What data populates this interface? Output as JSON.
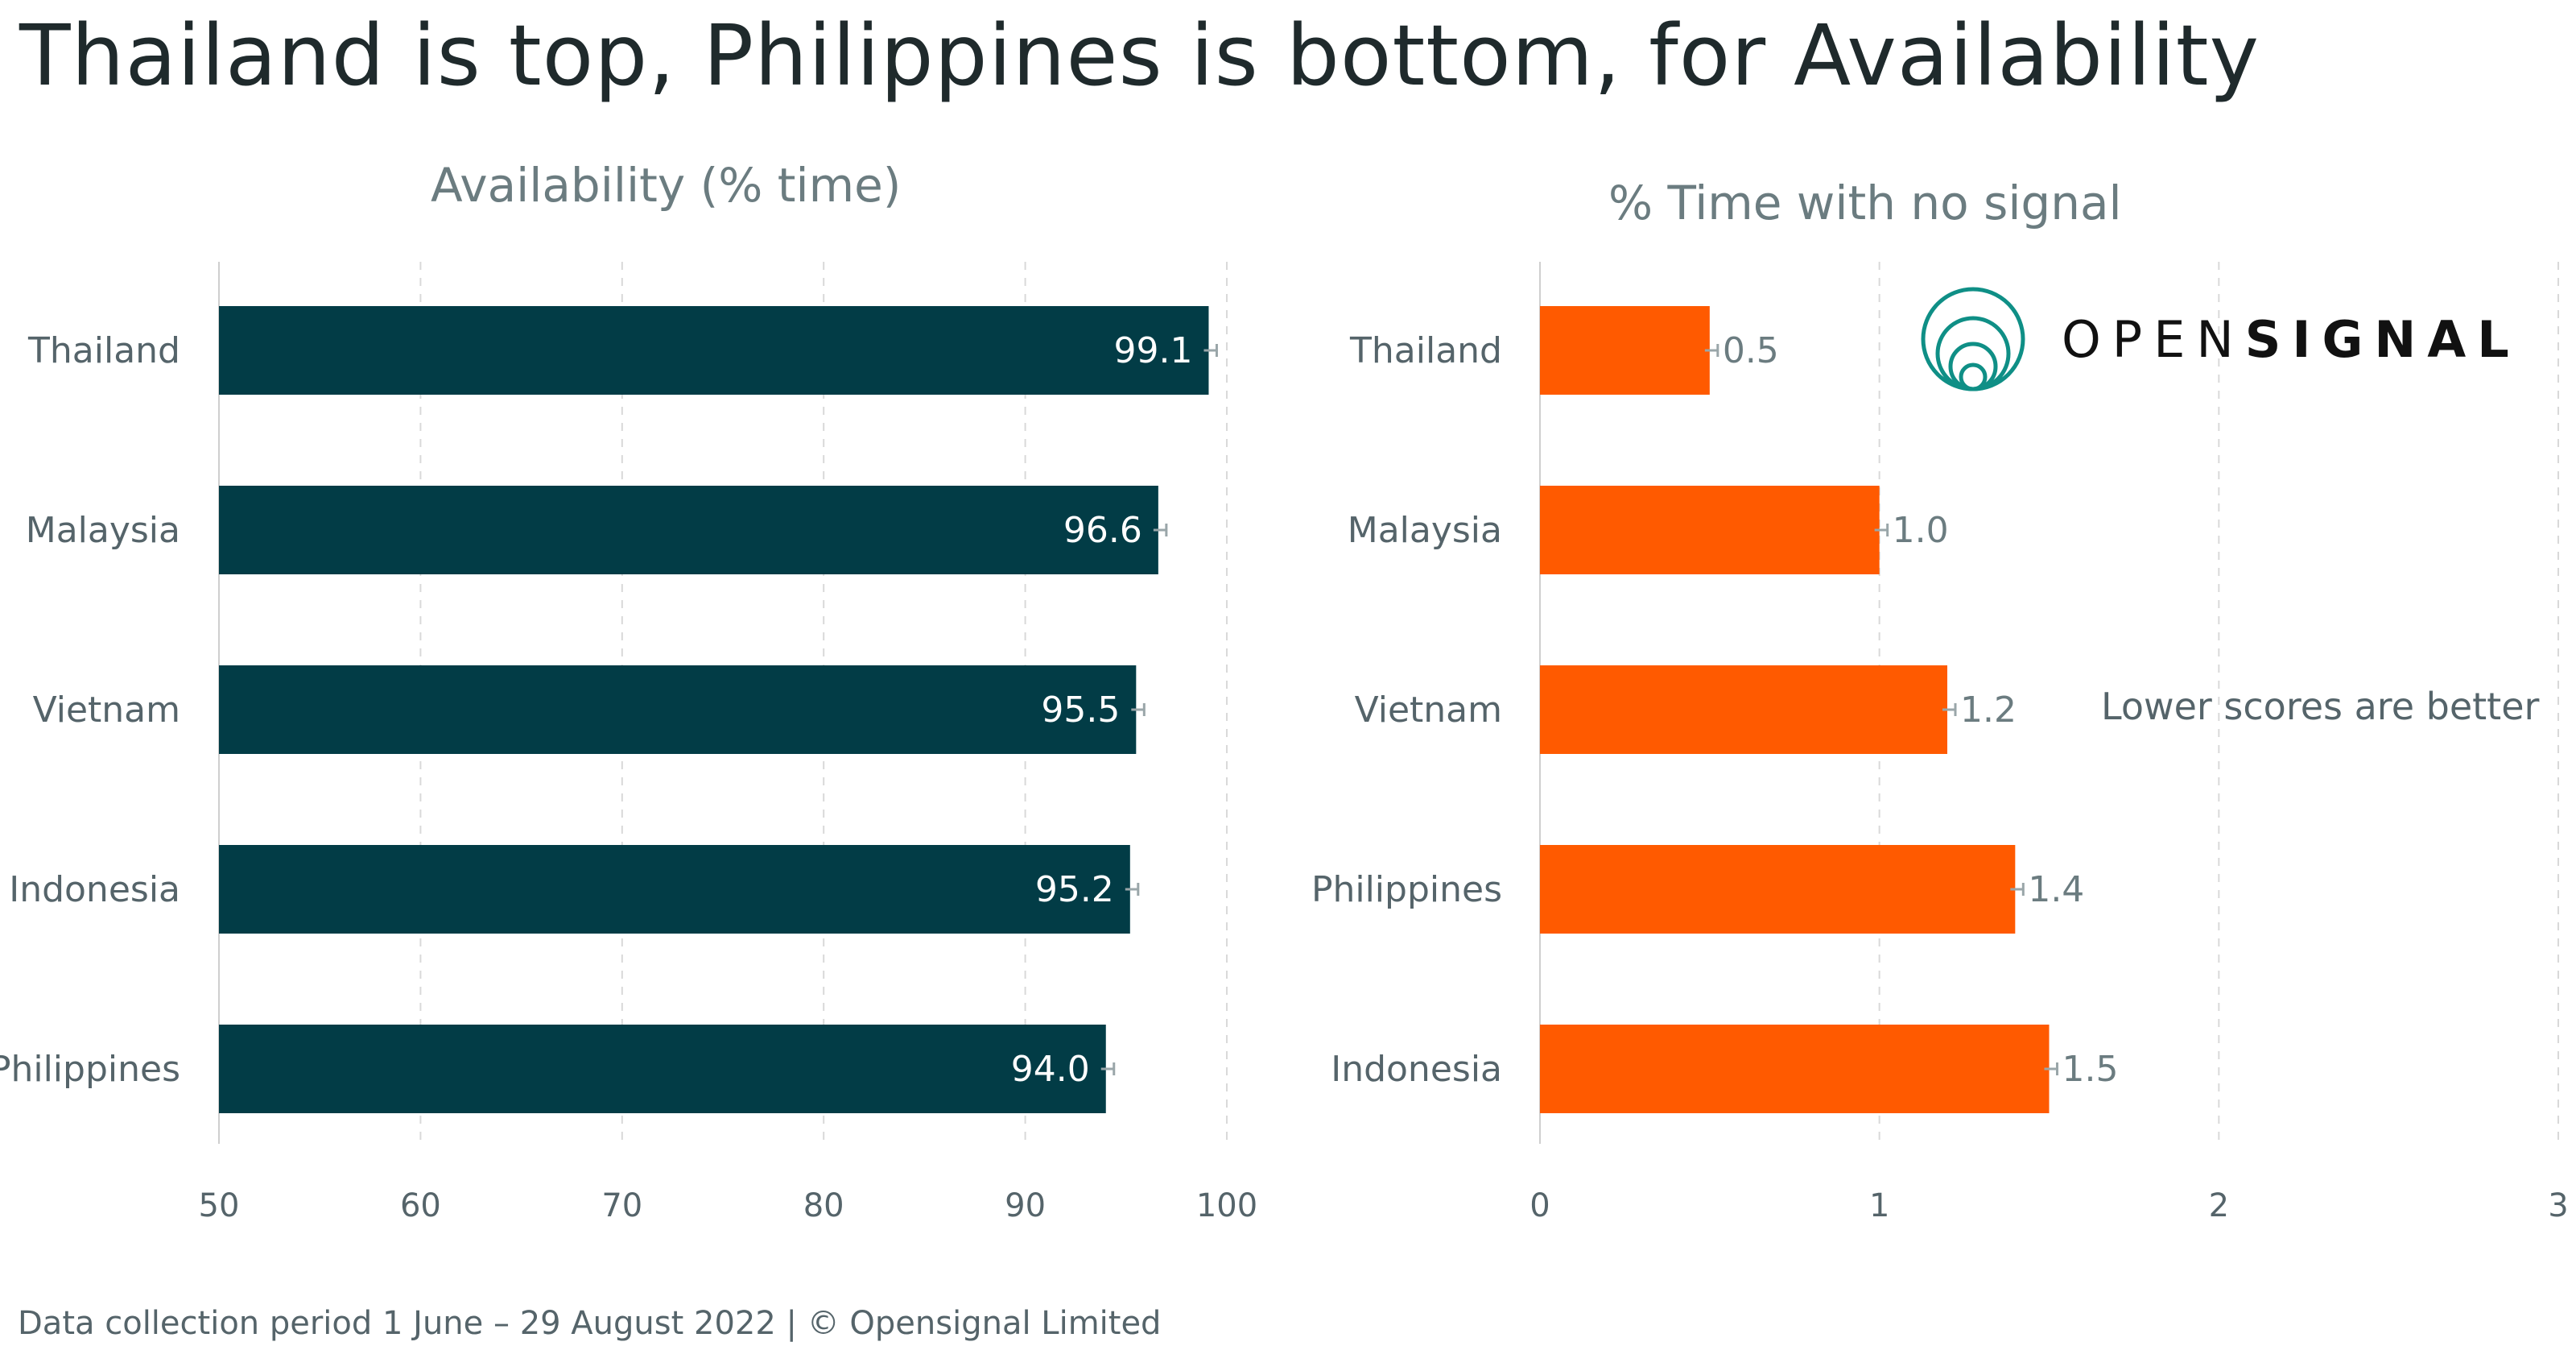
{
  "title": "Thailand is top, Philippines is bottom, for Availability",
  "footer": "Data collection period 1 June – 29 August 2022  |  © Opensignal Limited",
  "annotation": "Lower scores are better",
  "brand": {
    "word_light": "OPEN",
    "word_bold": "SIGNAL",
    "color": "#0f8f86"
  },
  "colors": {
    "left_bar": "#023c46",
    "right_bar": "#ff5a00",
    "grid": "#d9d9d9"
  },
  "chart_data": [
    {
      "type": "bar",
      "orientation": "horizontal",
      "title": "Availability (% time)",
      "categories": [
        "Thailand",
        "Malaysia",
        "Vietnam",
        "Indonesia",
        "Philippines"
      ],
      "values": [
        99.1,
        96.6,
        95.5,
        95.2,
        94.0
      ],
      "value_labels": [
        "99.1",
        "96.6",
        "95.5",
        "95.2",
        "94.0"
      ],
      "xlim": [
        50,
        100
      ],
      "xticks": [
        "50",
        "60",
        "70",
        "80",
        "90",
        "100"
      ],
      "error_bars": true,
      "grid": true
    },
    {
      "type": "bar",
      "orientation": "horizontal",
      "title": "% Time with no signal",
      "categories": [
        "Thailand",
        "Malaysia",
        "Vietnam",
        "Philippines",
        "Indonesia"
      ],
      "values": [
        0.5,
        1.0,
        1.2,
        1.4,
        1.5
      ],
      "value_labels": [
        "0.5",
        "1.0",
        "1.2",
        "1.4",
        "1.5"
      ],
      "xlim": [
        0,
        3
      ],
      "xticks": [
        "0",
        "1",
        "2",
        "3"
      ],
      "error_bars": true,
      "grid": true
    }
  ]
}
